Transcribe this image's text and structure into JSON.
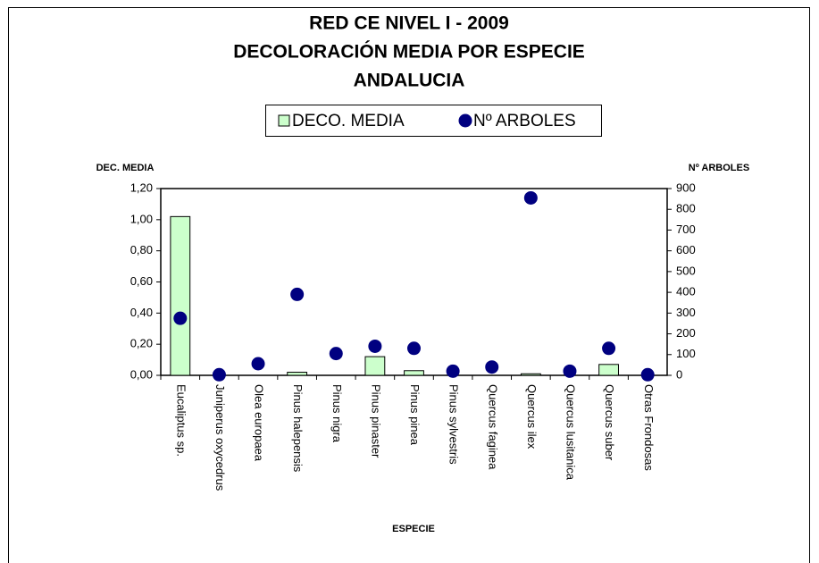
{
  "chart_data": {
    "type": "bar",
    "title": [
      "RED CE NIVEL I - 2009",
      "DECOLORACIÓN MEDIA POR ESPECIE",
      "ANDALUCIA"
    ],
    "ylabel": "DEC. MEDIA",
    "y2label": "Nº ARBOLES",
    "xlabel": "ESPECIE",
    "categories": [
      "Eucaliptus sp.",
      "Juniperus oxycedrus",
      "Olea europaea",
      "Pinus halepensis",
      "Pinus nigra",
      "Pinus pinaster",
      "Pinus pinea",
      "Pinus sylvestris",
      "Quercus faginea",
      "Quercus ilex",
      "Quercus lusitanica",
      "Quercus suber",
      "Otras Frondosas"
    ],
    "series": [
      {
        "name": "DECO. MEDIA",
        "type": "bar",
        "color": "#ccffcc",
        "values": [
          1.02,
          0,
          0,
          0.02,
          0,
          0.12,
          0.03,
          0,
          0,
          0.01,
          0,
          0.07,
          0
        ]
      },
      {
        "name": "Nº ARBOLES",
        "type": "scatter",
        "axis": "y2",
        "color": "#000080",
        "values": [
          275,
          3,
          56,
          390,
          105,
          140,
          130,
          20,
          40,
          855,
          20,
          130,
          3
        ]
      }
    ],
    "ylim": [
      0,
      1.2
    ],
    "yticks": [
      {
        "value": 0,
        "label": "0,00"
      },
      {
        "value": 0.2,
        "label": "0,20"
      },
      {
        "value": 0.4,
        "label": "0,40"
      },
      {
        "value": 0.6,
        "label": "0,60"
      },
      {
        "value": 0.8,
        "label": "0,80"
      },
      {
        "value": 1.0,
        "label": "1,00"
      },
      {
        "value": 1.2,
        "label": "1,20"
      }
    ],
    "y2lim": [
      0,
      900
    ],
    "y2ticks": [
      0,
      100,
      200,
      300,
      400,
      500,
      600,
      700,
      800,
      900
    ],
    "legend": "top",
    "grid": false
  }
}
